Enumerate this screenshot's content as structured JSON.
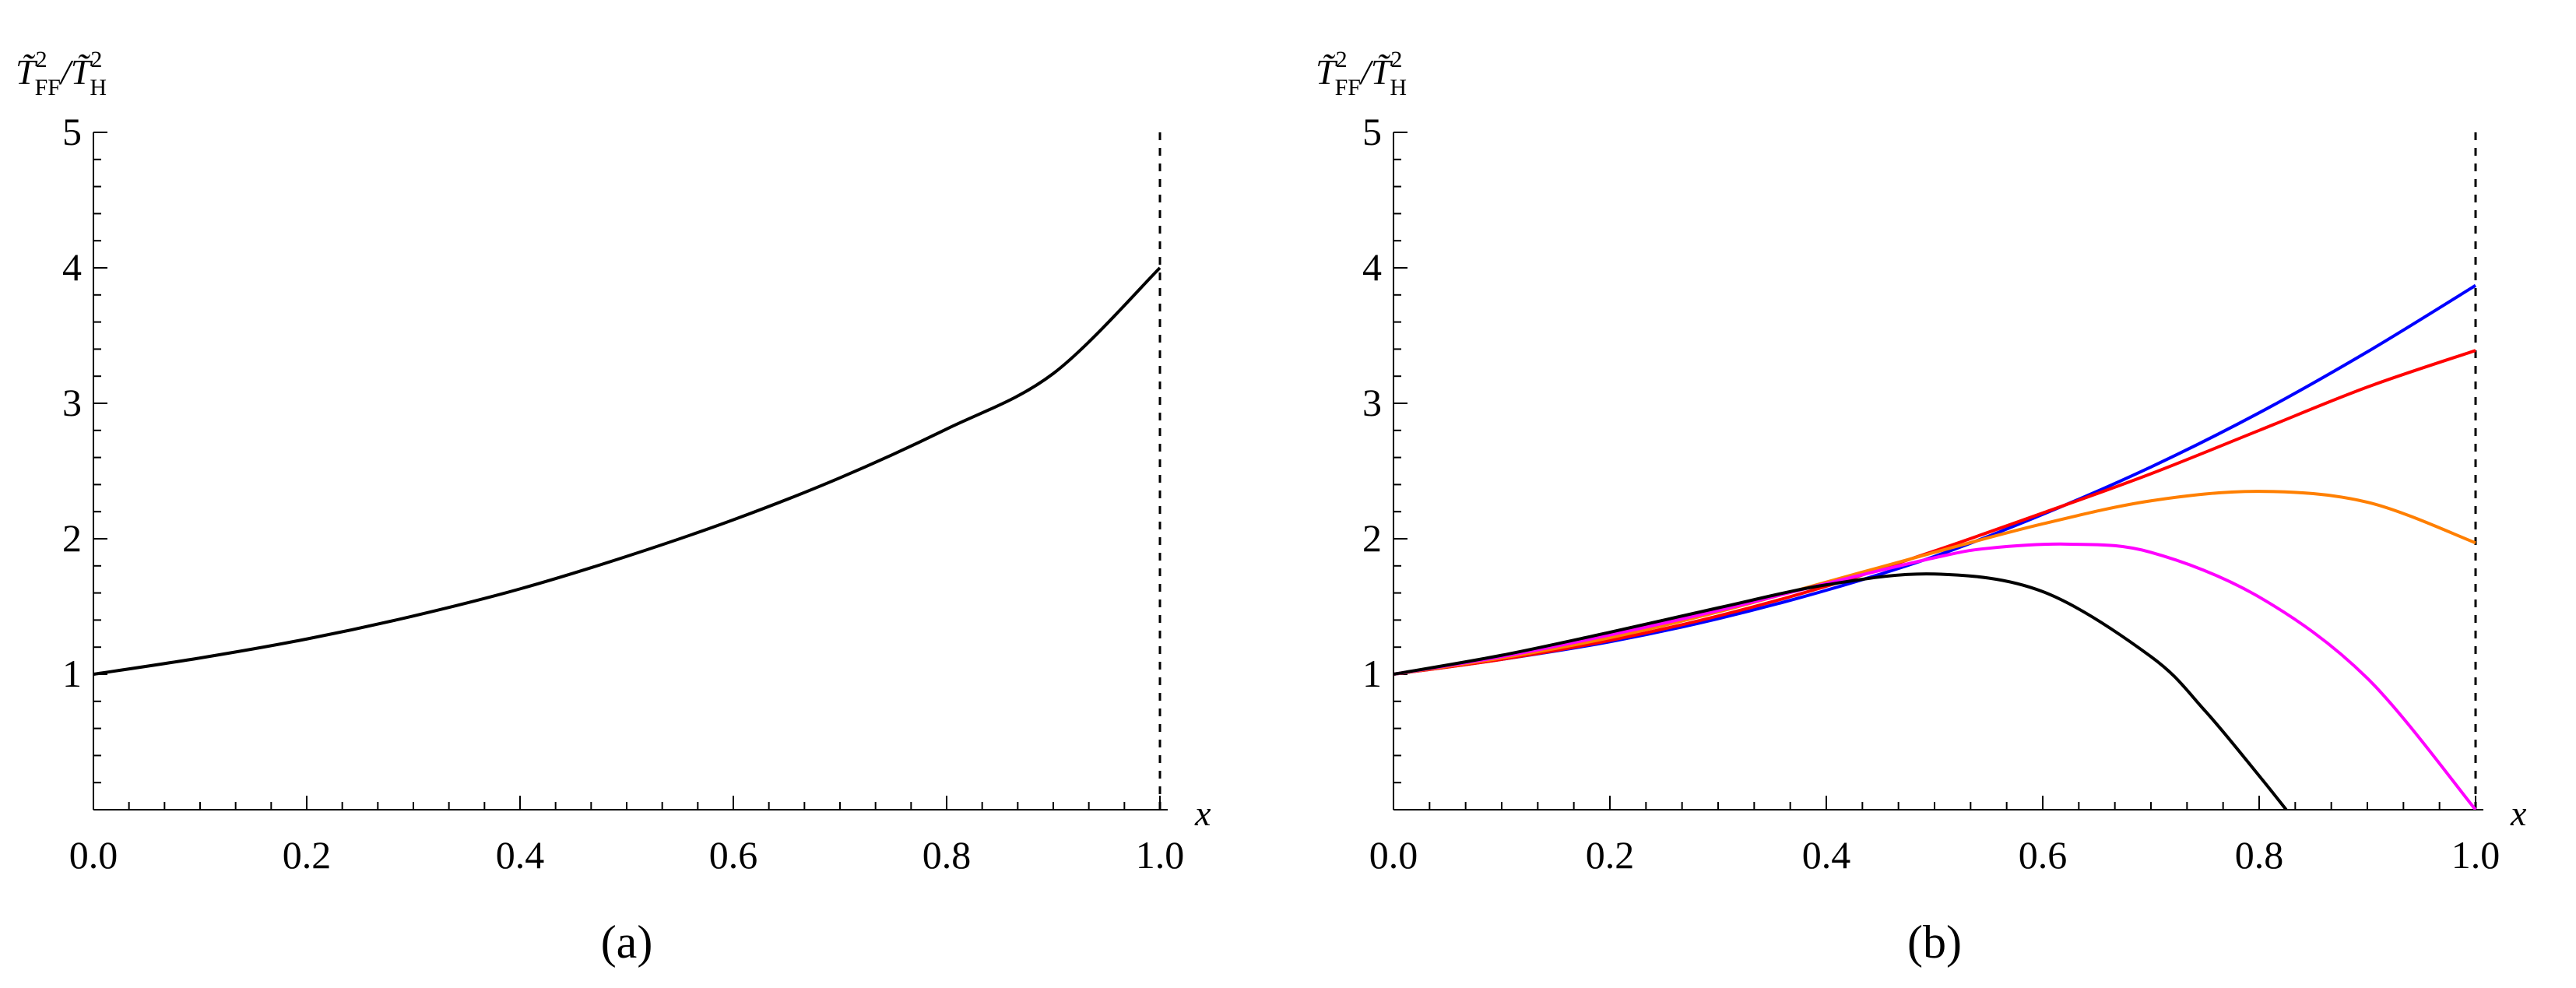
{
  "chart_data": [
    {
      "type": "line",
      "panel_label": "(a)",
      "ylabel": {
        "t1": "T̃",
        "sup1": "2",
        "sub1": "FF",
        "slash": "/",
        "t2": "T̃",
        "sup2": "2",
        "sub2": "H"
      },
      "xlabel": "x",
      "xlim": [
        0,
        1
      ],
      "ylim": [
        0,
        5
      ],
      "x_tick_labels": [
        "0.0",
        "0.2",
        "0.4",
        "0.6",
        "0.8",
        "1.0"
      ],
      "y_tick_labels": [
        "1",
        "2",
        "3",
        "4",
        "5"
      ],
      "vertical_dashed_line_x": 1.0,
      "grid": false,
      "series": [
        {
          "color": "#000000",
          "x": [
            0,
            0.1,
            0.2,
            0.3,
            0.4,
            0.5,
            0.6,
            0.7,
            0.8,
            0.9,
            1.0
          ],
          "y": [
            1.0,
            1.12,
            1.26,
            1.43,
            1.63,
            1.87,
            2.14,
            2.45,
            2.81,
            3.22,
            4.0
          ]
        }
      ]
    },
    {
      "type": "line",
      "panel_label": "(b)",
      "ylabel": {
        "t1": "T̃",
        "sup1": "2",
        "sub1": "FF",
        "slash": "/",
        "t2": "T̃",
        "sup2": "2",
        "sub2": "H"
      },
      "xlabel": "x",
      "xlim": [
        0,
        1
      ],
      "ylim": [
        0,
        5
      ],
      "x_tick_labels": [
        "0.0",
        "0.2",
        "0.4",
        "0.6",
        "0.8",
        "1.0"
      ],
      "y_tick_labels": [
        "1",
        "2",
        "3",
        "4",
        "5"
      ],
      "vertical_dashed_line_x": 1.0,
      "grid": false,
      "series": [
        {
          "color": "#0000ff",
          "x": [
            0,
            0.1,
            0.2,
            0.3,
            0.4,
            0.5,
            0.6,
            0.7,
            0.8,
            0.9,
            1.0
          ],
          "y": [
            1.0,
            1.11,
            1.24,
            1.41,
            1.62,
            1.87,
            2.18,
            2.53,
            2.93,
            3.38,
            3.87
          ]
        },
        {
          "color": "#ff0000",
          "x": [
            0,
            0.1,
            0.2,
            0.3,
            0.4,
            0.5,
            0.6,
            0.7,
            0.8,
            0.9,
            1.0
          ],
          "y": [
            1.0,
            1.11,
            1.25,
            1.43,
            1.65,
            1.91,
            2.19,
            2.48,
            2.8,
            3.12,
            3.39
          ]
        },
        {
          "color": "#ff7f00",
          "x": [
            0,
            0.1,
            0.2,
            0.3,
            0.4,
            0.5,
            0.6,
            0.7,
            0.8,
            0.9,
            1.0
          ],
          "y": [
            1.0,
            1.12,
            1.27,
            1.46,
            1.68,
            1.9,
            2.11,
            2.28,
            2.35,
            2.27,
            1.97
          ]
        },
        {
          "color": "#ff00ff",
          "x": [
            0,
            0.1,
            0.2,
            0.3,
            0.4,
            0.5,
            0.55,
            0.625,
            0.7,
            0.8,
            0.9,
            1.0
          ],
          "y": [
            1.0,
            1.13,
            1.29,
            1.47,
            1.67,
            1.86,
            1.93,
            1.96,
            1.9,
            1.57,
            0.97,
            0.0
          ]
        },
        {
          "color": "#000000",
          "x": [
            0,
            0.1,
            0.2,
            0.3,
            0.4,
            0.5,
            0.6,
            0.7,
            0.75,
            0.8,
            0.825
          ],
          "y": [
            1.0,
            1.14,
            1.31,
            1.49,
            1.66,
            1.74,
            1.61,
            1.13,
            0.73,
            0.25,
            0.0
          ]
        }
      ]
    }
  ]
}
